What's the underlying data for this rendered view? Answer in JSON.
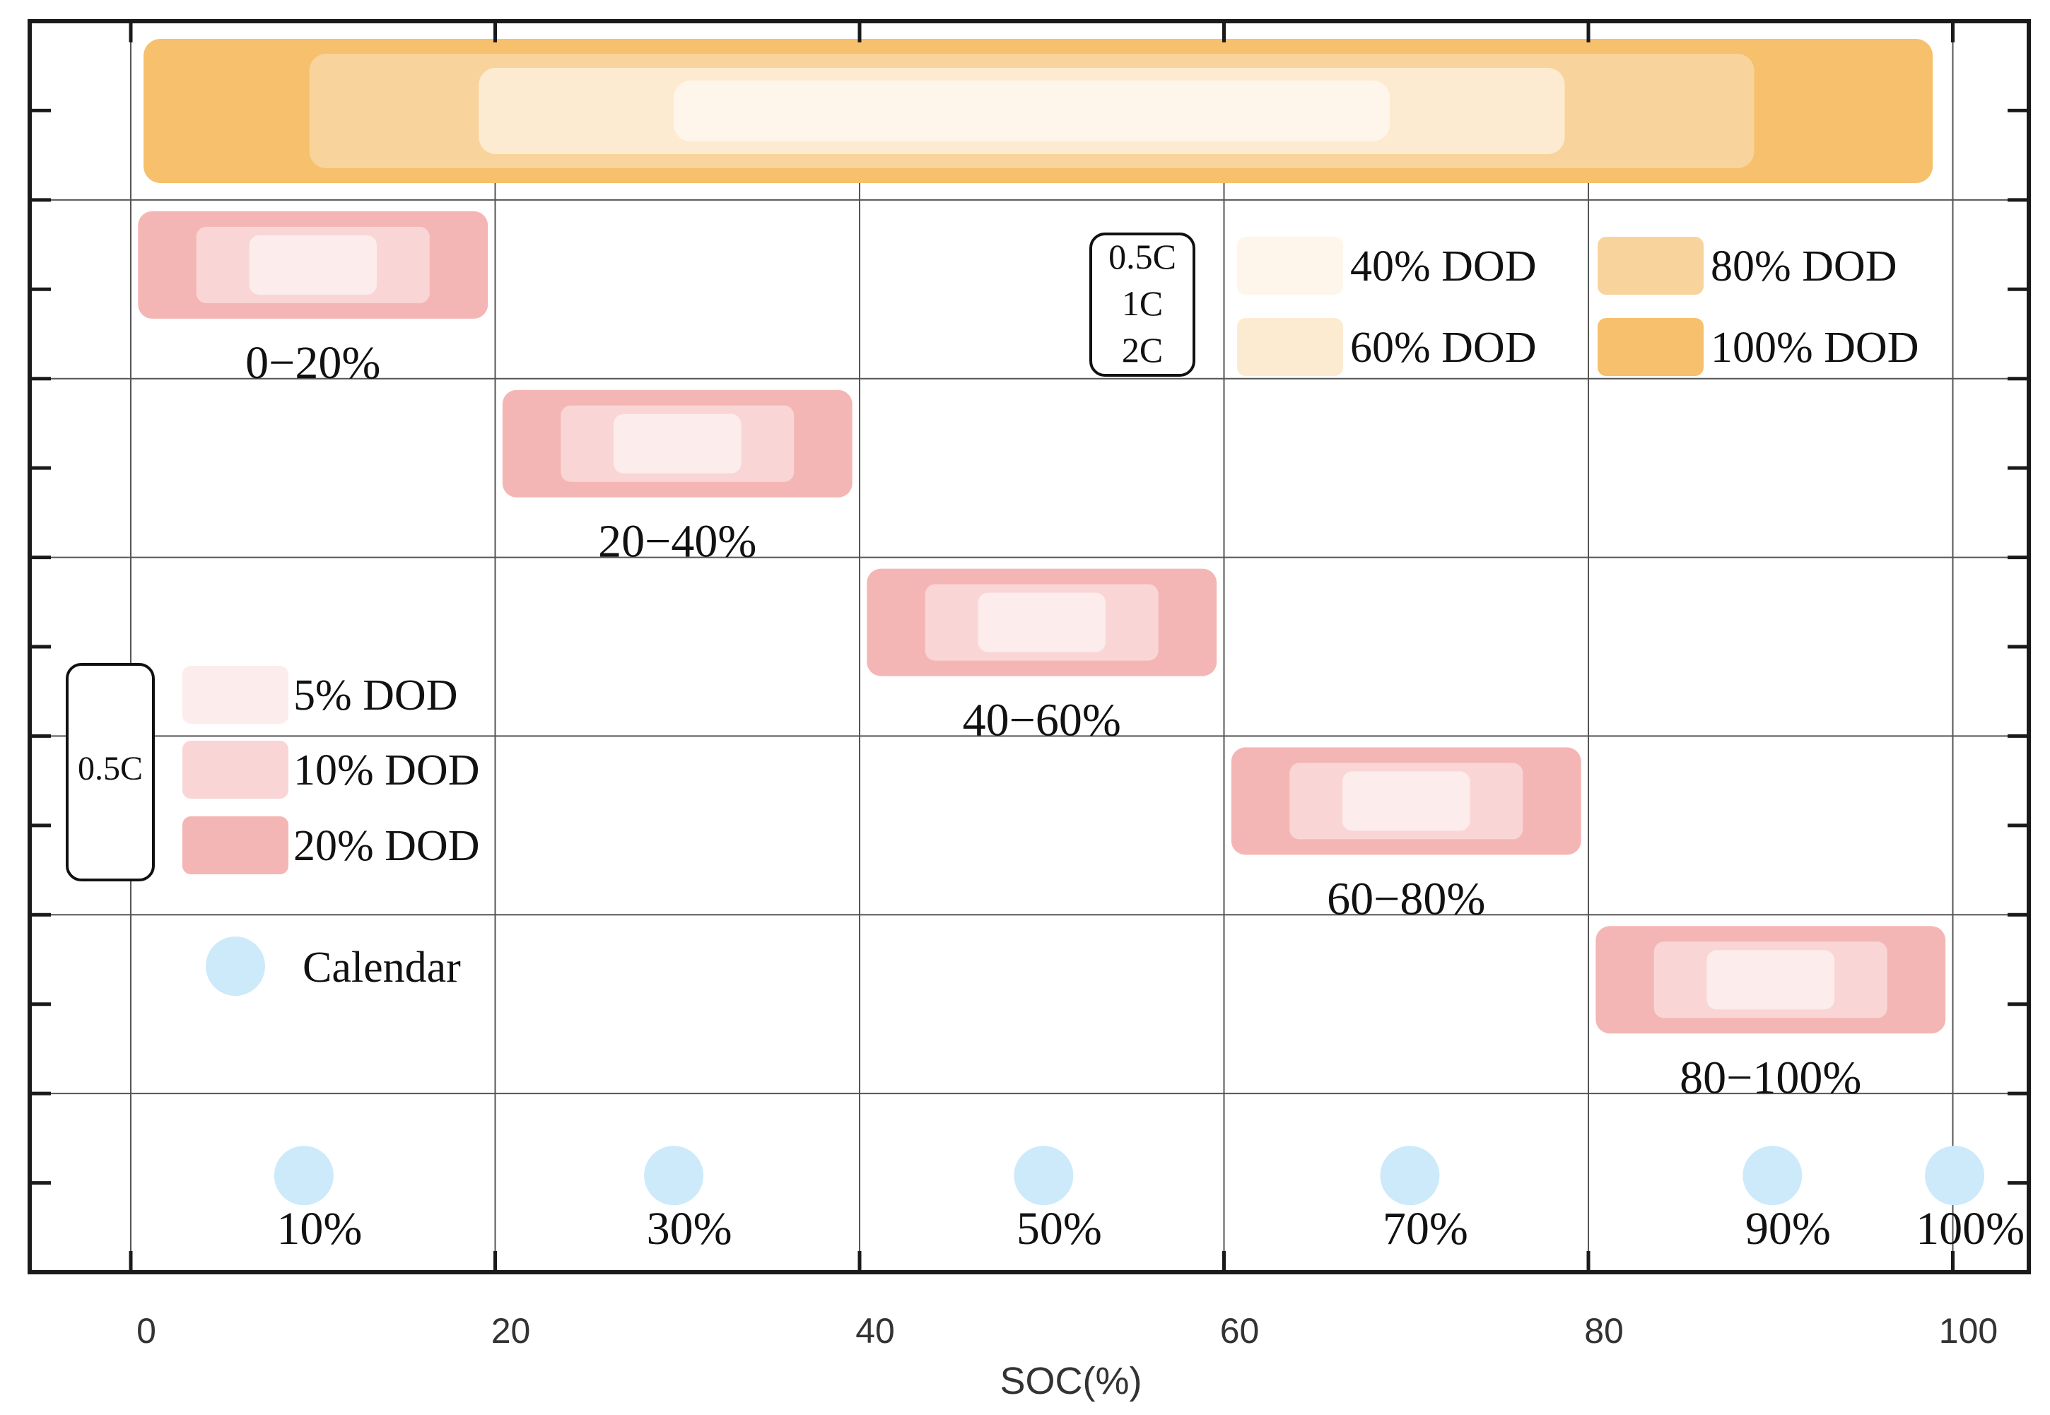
{
  "chart_data": {
    "type": "range-bar",
    "xlabel": "SOC(%)",
    "xlim": [
      -5,
      102
    ],
    "xticks": [
      0,
      20,
      40,
      60,
      80,
      100
    ],
    "xtick_labels": [
      "0",
      "20",
      "40",
      "60",
      "80",
      "100"
    ],
    "ylim": [
      0,
      7
    ],
    "grid": true,
    "colors": {
      "dod_5": "#fcecec",
      "dod_10": "#f9d6d5",
      "dod_20": "#f4b6b4",
      "dod_40": "#fef6ea",
      "dod_60": "#fdebd1",
      "dod_80": "#f9d39c",
      "dod_100": "#f6c06c",
      "calendar": "#cdeafb"
    },
    "full_range_bands": [
      {
        "label": "100% DOD",
        "start": 0.7,
        "end": 98.9,
        "color_key": "dod_100"
      },
      {
        "label": "80% DOD",
        "start": 9.8,
        "end": 89.1,
        "color_key": "dod_80"
      },
      {
        "label": "60% DOD",
        "start": 19.1,
        "end": 78.7,
        "color_key": "dod_60"
      },
      {
        "label": "40% DOD",
        "start": 29.8,
        "end": 69.1,
        "color_key": "dod_40"
      }
    ],
    "soc_windows": [
      {
        "label": "0−20%",
        "start": 0.4,
        "end": 19.6,
        "row": 1
      },
      {
        "label": "20−40%",
        "start": 20.4,
        "end": 39.6,
        "row": 2
      },
      {
        "label": "40−60%",
        "start": 40.4,
        "end": 59.6,
        "row": 3
      },
      {
        "label": "60−80%",
        "start": 60.4,
        "end": 79.6,
        "row": 4
      },
      {
        "label": "80−100%",
        "start": 80.4,
        "end": 99.6,
        "row": 5
      }
    ],
    "window_inner_bands": [
      {
        "label": "10% DOD",
        "offset": 3.2,
        "color_key": "dod_10"
      },
      {
        "label": "5% DOD",
        "offset": 6.1,
        "color_key": "dod_5"
      }
    ],
    "calendar_points": [
      {
        "soc": 9.5,
        "label": "10%"
      },
      {
        "soc": 29.8,
        "label": "30%"
      },
      {
        "soc": 50.1,
        "label": "50%"
      },
      {
        "soc": 70.2,
        "label": "70%"
      },
      {
        "soc": 90.1,
        "label": "90%"
      },
      {
        "soc": 100.1,
        "label": "100%"
      }
    ],
    "legend_upper": {
      "rate_box": [
        "0.5C",
        "1C",
        "2C"
      ],
      "items": [
        {
          "label": "40% DOD",
          "color_key": "dod_40"
        },
        {
          "label": "80% DOD",
          "color_key": "dod_80"
        },
        {
          "label": "60% DOD",
          "color_key": "dod_60"
        },
        {
          "label": "100% DOD",
          "color_key": "dod_100"
        }
      ]
    },
    "legend_lower": {
      "rate_box": [
        "0.5C"
      ],
      "items": [
        {
          "label": "5% DOD",
          "color_key": "dod_5"
        },
        {
          "label": "10% DOD",
          "color_key": "dod_10"
        },
        {
          "label": "20% DOD",
          "color_key": "dod_20"
        }
      ],
      "calendar_label": "Calendar"
    }
  }
}
